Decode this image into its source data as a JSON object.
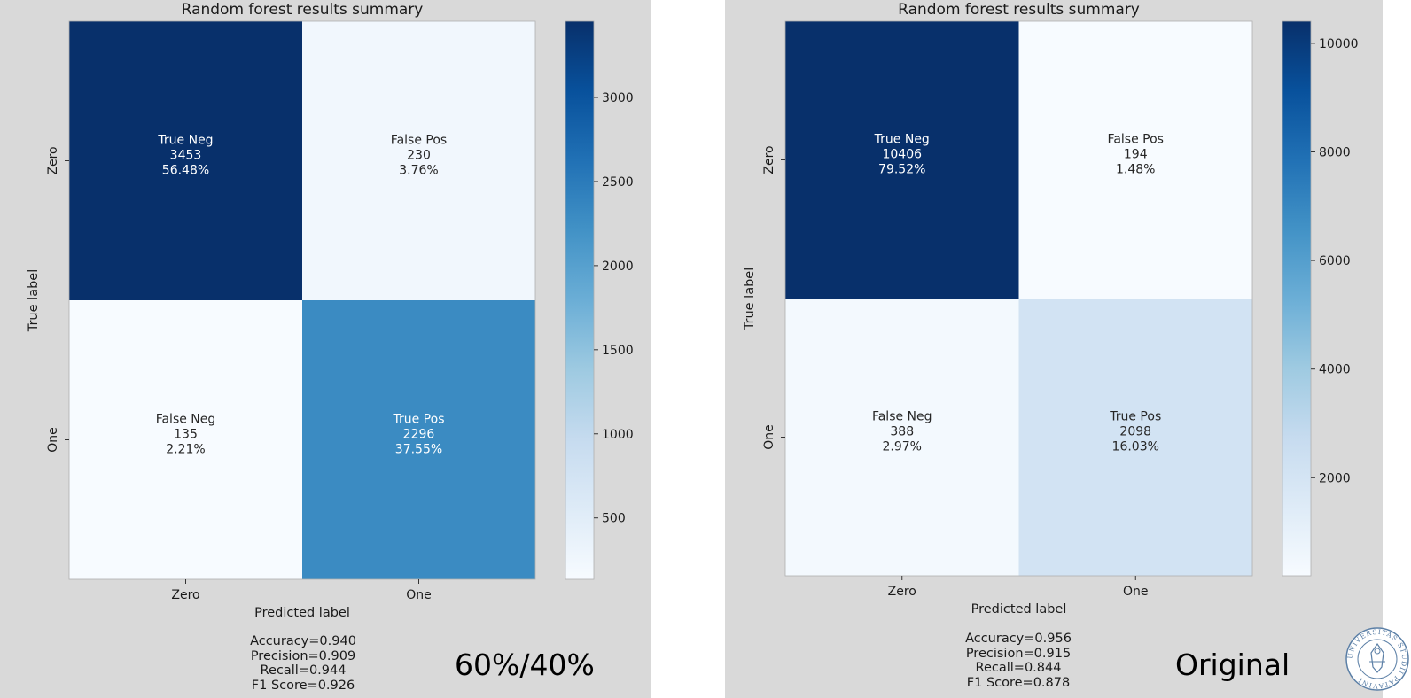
{
  "charts": {
    "left": {
      "chart_data": {
        "type": "heatmap",
        "title": "Random forest results summary",
        "xlabel": "Predicted label",
        "ylabel": "True label",
        "x_categories": [
          "Zero",
          "One"
        ],
        "y_categories": [
          "Zero",
          "One"
        ],
        "cells": [
          [
            {
              "group": "True Neg",
              "count": "3453",
              "percent": "56.48%",
              "value": 3453
            },
            {
              "group": "False Pos",
              "count": "230",
              "percent": "3.76%",
              "value": 230
            }
          ],
          [
            {
              "group": "False Neg",
              "count": "135",
              "percent": "2.21%",
              "value": 135
            },
            {
              "group": "True Pos",
              "count": "2296",
              "percent": "37.55%",
              "value": 2296
            }
          ]
        ],
        "colorbar": {
          "min": 135,
          "max": 3453,
          "ticks": [
            "500",
            "1000",
            "1500",
            "2000",
            "2500",
            "3000"
          ],
          "tick_values": [
            500,
            1000,
            1500,
            2000,
            2500,
            3000
          ]
        },
        "colormap": "Blues"
      },
      "metrics": {
        "accuracy": "Accuracy=0.940",
        "precision": "Precision=0.909",
        "recall": "Recall=0.944",
        "f1": "F1 Score=0.926"
      },
      "caption": "60%/40%"
    },
    "right": {
      "chart_data": {
        "type": "heatmap",
        "title": "Random forest results summary",
        "xlabel": "Predicted label",
        "ylabel": "True label",
        "x_categories": [
          "Zero",
          "One"
        ],
        "y_categories": [
          "Zero",
          "One"
        ],
        "cells": [
          [
            {
              "group": "True Neg",
              "count": "10406",
              "percent": "79.52%",
              "value": 10406
            },
            {
              "group": "False Pos",
              "count": "194",
              "percent": "1.48%",
              "value": 194
            }
          ],
          [
            {
              "group": "False Neg",
              "count": "388",
              "percent": "2.97%",
              "value": 388
            },
            {
              "group": "True Pos",
              "count": "2098",
              "percent": "16.03%",
              "value": 2098
            }
          ]
        ],
        "colorbar": {
          "min": 194,
          "max": 10406,
          "ticks": [
            "2000",
            "4000",
            "6000",
            "8000",
            "10000"
          ],
          "tick_values": [
            2000,
            4000,
            6000,
            8000,
            10000
          ]
        },
        "colormap": "Blues"
      },
      "metrics": {
        "accuracy": "Accuracy=0.956",
        "precision": "Precision=0.915",
        "recall": "Recall=0.844",
        "f1": "F1 Score=0.878"
      },
      "caption": "Original"
    }
  },
  "seal": {
    "lettering": "UNIVERSITAS STUDII PATAVINI"
  }
}
